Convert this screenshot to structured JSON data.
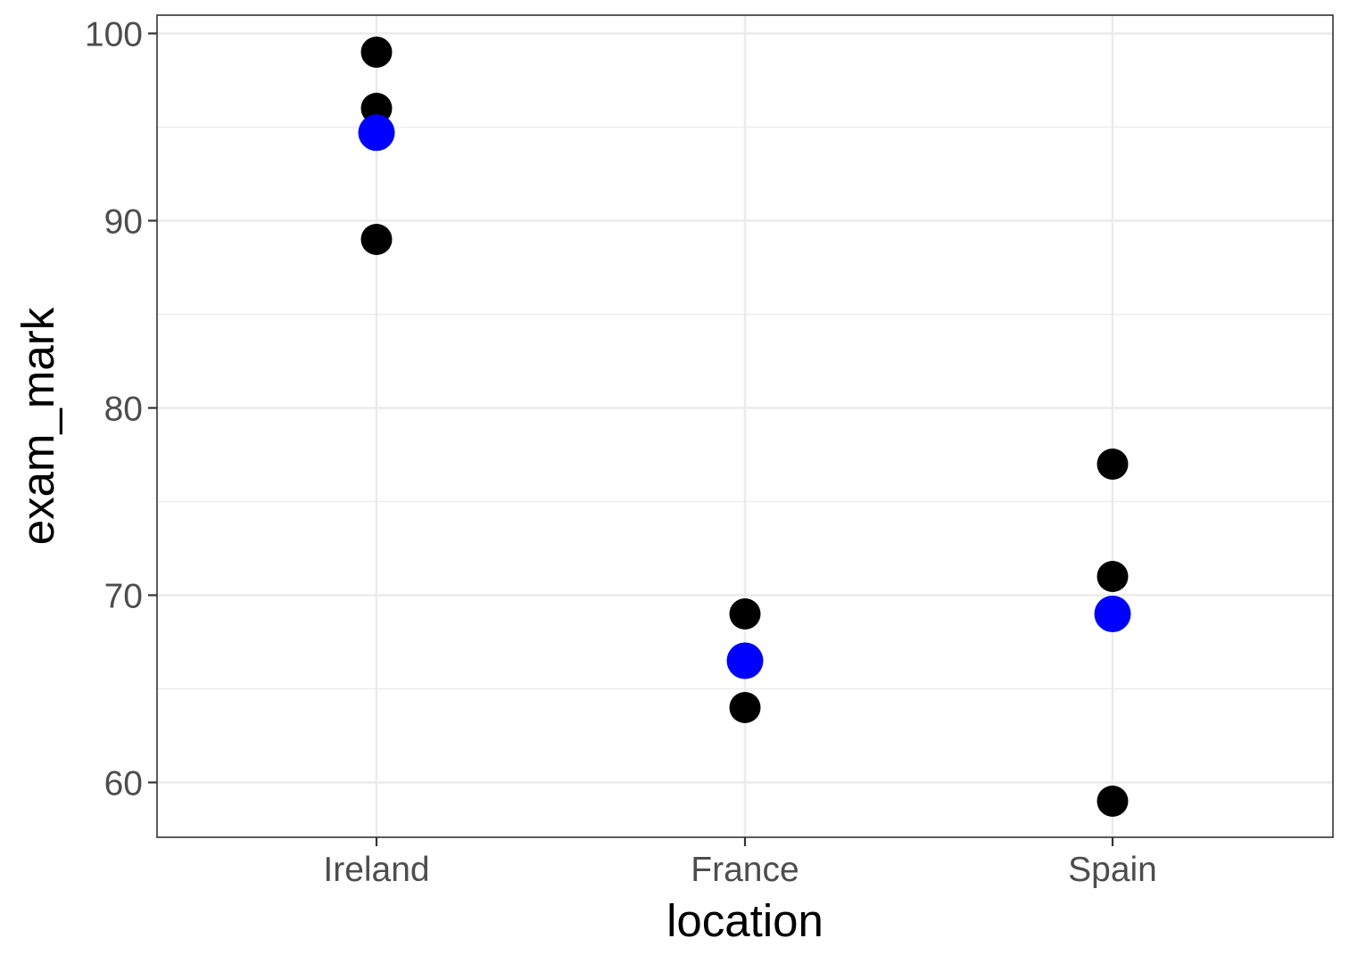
{
  "chart_data": {
    "type": "scatter",
    "title": "",
    "xlabel": "location",
    "ylabel": "exam_mark",
    "categories": [
      "Ireland",
      "France",
      "Spain"
    ],
    "ylim": [
      57,
      101
    ],
    "yticks": [
      60,
      70,
      80,
      90,
      100
    ],
    "grid": true,
    "legend": "none",
    "series": [
      {
        "color": "#000000",
        "points": [
          {
            "x": "Ireland",
            "y": 99
          },
          {
            "x": "Ireland",
            "y": 96
          },
          {
            "x": "Ireland",
            "y": 89
          },
          {
            "x": "France",
            "y": 69
          },
          {
            "x": "France",
            "y": 64
          },
          {
            "x": "Spain",
            "y": 77
          },
          {
            "x": "Spain",
            "y": 71
          },
          {
            "x": "Spain",
            "y": 59
          }
        ]
      },
      {
        "color": "#0000ff",
        "points": [
          {
            "x": "Ireland",
            "y": 94.7
          },
          {
            "x": "France",
            "y": 66.5
          },
          {
            "x": "Spain",
            "y": 69
          }
        ]
      }
    ]
  }
}
